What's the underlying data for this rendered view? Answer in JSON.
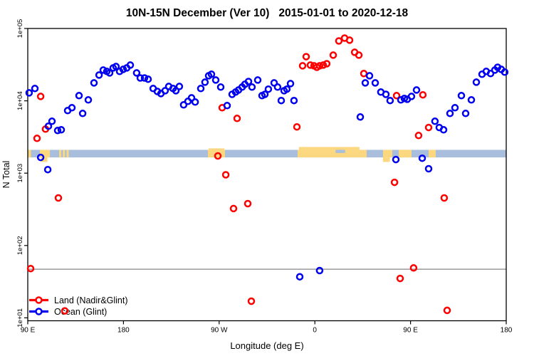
{
  "chart_data": {
    "type": "scatter",
    "title": "10N-15N December (Ver 10)   2015-01-01 to 2020-12-18",
    "xlabel": "Longitude (deg E)",
    "ylabel": "N Total",
    "x_axis": {
      "domain": [
        90,
        540
      ],
      "ticks": [
        {
          "pos": 90,
          "label": "90 E"
        },
        {
          "pos": 180,
          "label": "180"
        },
        {
          "pos": 270,
          "label": "90 W"
        },
        {
          "pos": 360,
          "label": "0"
        },
        {
          "pos": 450,
          "label": "90 E"
        },
        {
          "pos": 540,
          "label": "180"
        }
      ]
    },
    "y_axis": {
      "scale": "log",
      "domain": [
        9.3,
        100000
      ],
      "ticks": [
        {
          "value": 10,
          "label": "1e+01"
        },
        {
          "value": 100,
          "label": "1e+02"
        },
        {
          "value": 1000,
          "label": "1e+03"
        },
        {
          "value": 10000,
          "label": "1e+04"
        },
        {
          "value": 100000,
          "label": "1e+05"
        }
      ]
    },
    "grid": false,
    "legend_position": "bottom-left",
    "threshold_line": {
      "value": 47,
      "color": "#999999"
    },
    "map_band": {
      "value_range": [
        1650,
        2100
      ],
      "ocean_color": "#A8BEDC",
      "land_color": "#FBD87F",
      "land_segments": [
        [
          90,
          93
        ],
        [
          101.4,
          110.8
        ],
        [
          119.5,
          121.5
        ],
        [
          123,
          125
        ],
        [
          126.5,
          128.5
        ],
        [
          259.4,
          275.5
        ],
        [
          343.8,
          408.7
        ],
        [
          424.1,
          432.8
        ],
        [
          438.9,
          450.9
        ],
        [
          467,
          473.7
        ]
      ],
      "land_details": [
        {
          "lon": [
            345,
            402
          ],
          "v": [
            2100,
            2300
          ]
        },
        {
          "lon": [
            260,
            275
          ],
          "v": [
            2100,
            2200
          ]
        },
        {
          "lon": [
            102.5,
            108.5
          ],
          "v": [
            1430,
            1650
          ]
        },
        {
          "lon": [
            424,
            430.5
          ],
          "v": [
            1430,
            1650
          ]
        }
      ],
      "ocean_details": [
        {
          "lon": [
            379.5,
            388.5
          ],
          "v": [
            1900,
            2100
          ]
        }
      ]
    },
    "series": [
      {
        "name": "Land (Nadir&Glint)",
        "color": "#FF0000",
        "marker": "open-circle",
        "points": [
          [
            92.7,
            48
          ],
          [
            98.7,
            3030
          ],
          [
            102.1,
            11500
          ],
          [
            106.7,
            4070
          ],
          [
            118.8,
            454
          ],
          [
            124.8,
            12.5
          ],
          [
            268.8,
            1730
          ],
          [
            272.8,
            8030
          ],
          [
            276.2,
            950
          ],
          [
            283.5,
            324
          ],
          [
            286.9,
            5710
          ],
          [
            296.9,
            379
          ],
          [
            300.3,
            17
          ],
          [
            343.1,
            4360
          ],
          [
            348.5,
            30500
          ],
          [
            351.8,
            40800
          ],
          [
            355.8,
            31200
          ],
          [
            359.2,
            30500
          ],
          [
            361.9,
            29100
          ],
          [
            364.5,
            30500
          ],
          [
            367.9,
            31200
          ],
          [
            371.2,
            32600
          ],
          [
            377.3,
            42800
          ],
          [
            382.6,
            67300
          ],
          [
            388.0,
            73600
          ],
          [
            392.7,
            68900
          ],
          [
            397.4,
            46900
          ],
          [
            401.4,
            42800
          ],
          [
            406.1,
            23800
          ],
          [
            434.9,
            746
          ],
          [
            436.9,
            11800
          ],
          [
            440.2,
            35
          ],
          [
            452.9,
            49
          ],
          [
            457.6,
            3320
          ],
          [
            461.6,
            12100
          ],
          [
            467.0,
            4270
          ],
          [
            481.7,
            454
          ],
          [
            484.4,
            12.7
          ]
        ]
      },
      {
        "name": "Ocean (Glint)",
        "color": "#0000EE",
        "marker": "open-circle",
        "points": [
          [
            91.3,
            12900
          ],
          [
            96.7,
            14800
          ],
          [
            102.1,
            1650
          ],
          [
            108.8,
            1120
          ],
          [
            109.4,
            4460
          ],
          [
            112.8,
            5220
          ],
          [
            118.1,
            3890
          ],
          [
            121.5,
            3980
          ],
          [
            127.5,
            7330
          ],
          [
            131.5,
            8030
          ],
          [
            138.2,
            11800
          ],
          [
            141.6,
            6700
          ],
          [
            146.9,
            10300
          ],
          [
            152.3,
            17700
          ],
          [
            157.0,
            22700
          ],
          [
            161.0,
            26600
          ],
          [
            164.3,
            25500
          ],
          [
            167.0,
            24300
          ],
          [
            170.3,
            28500
          ],
          [
            173.0,
            29800
          ],
          [
            176.4,
            25500
          ],
          [
            179.7,
            27200
          ],
          [
            183.1,
            28500
          ],
          [
            186.4,
            31200
          ],
          [
            192.4,
            24300
          ],
          [
            195.8,
            20700
          ],
          [
            199.8,
            20700
          ],
          [
            203.2,
            19900
          ],
          [
            207.9,
            14800
          ],
          [
            211.9,
            13500
          ],
          [
            215.2,
            12600
          ],
          [
            219.2,
            13800
          ],
          [
            222.6,
            15800
          ],
          [
            226.6,
            14800
          ],
          [
            229.3,
            13800
          ],
          [
            232.6,
            15800
          ],
          [
            236.6,
            8790
          ],
          [
            240.7,
            9840
          ],
          [
            244.0,
            11000
          ],
          [
            247.4,
            9620
          ],
          [
            252.7,
            14800
          ],
          [
            256.7,
            18100
          ],
          [
            260.1,
            22200
          ],
          [
            262.8,
            23300
          ],
          [
            266.8,
            19400
          ],
          [
            271.5,
            15500
          ],
          [
            277.5,
            8590
          ],
          [
            282.2,
            12300
          ],
          [
            285.5,
            13200
          ],
          [
            288.2,
            14100
          ],
          [
            291.6,
            15500
          ],
          [
            294.2,
            16900
          ],
          [
            297.6,
            18500
          ],
          [
            300.9,
            15500
          ],
          [
            306.3,
            19400
          ],
          [
            310.3,
            11800
          ],
          [
            313.0,
            12300
          ],
          [
            316.3,
            14500
          ],
          [
            321.7,
            17700
          ],
          [
            325.0,
            15500
          ],
          [
            328.4,
            10100
          ],
          [
            331.1,
            13800
          ],
          [
            333.7,
            14500
          ],
          [
            337.1,
            17300
          ],
          [
            340.4,
            10100
          ],
          [
            345.8,
            37
          ],
          [
            364.5,
            45
          ],
          [
            402.7,
            5980
          ],
          [
            407.4,
            17700
          ],
          [
            411.4,
            22200
          ],
          [
            416.8,
            17700
          ],
          [
            422.1,
            13200
          ],
          [
            426.8,
            12300
          ],
          [
            430.8,
            10100
          ],
          [
            436.2,
            1540
          ],
          [
            440.9,
            10300
          ],
          [
            444.2,
            10800
          ],
          [
            446.9,
            10500
          ],
          [
            450.9,
            11500
          ],
          [
            455.6,
            14100
          ],
          [
            461.0,
            1610
          ],
          [
            467.0,
            1150
          ],
          [
            473.0,
            5220
          ],
          [
            477.0,
            4270
          ],
          [
            481.1,
            3980
          ],
          [
            487.1,
            6700
          ],
          [
            491.8,
            8030
          ],
          [
            497.8,
            11800
          ],
          [
            501.8,
            6700
          ],
          [
            507.2,
            10300
          ],
          [
            511.9,
            18100
          ],
          [
            517.2,
            23300
          ],
          [
            521.2,
            25500
          ],
          [
            525.3,
            23800
          ],
          [
            529.3,
            26600
          ],
          [
            531.9,
            29100
          ],
          [
            535.3,
            27200
          ],
          [
            538.6,
            24900
          ]
        ]
      }
    ]
  }
}
